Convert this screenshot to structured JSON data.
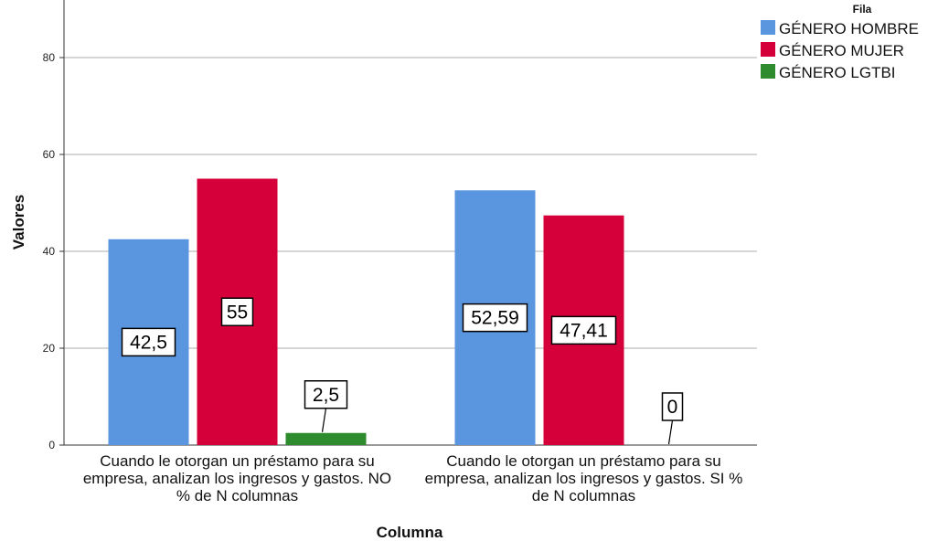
{
  "chart_data": {
    "type": "bar",
    "ylabel": "Valores",
    "xlabel": "Columna",
    "ylim": [
      0,
      90
    ],
    "yticks": [
      0,
      20,
      40,
      60,
      80
    ],
    "grid": true,
    "legend": {
      "title": "Fila",
      "placement": "top-right"
    },
    "categories": [
      [
        "Cuando le otorgan un préstamo para su",
        "empresa, analizan los ingresos y gastos. NO",
        "% de N columnas"
      ],
      [
        "Cuando le otorgan un préstamo para su",
        "empresa, analizan los ingresos y gastos. SI %",
        "de N columnas"
      ]
    ],
    "series": [
      {
        "name": "GÉNERO HOMBRE",
        "color": "#5A96E0",
        "values": [
          42.5,
          52.59
        ],
        "labels": [
          "42,5",
          "52,59"
        ]
      },
      {
        "name": "GÉNERO MUJER",
        "color": "#D5003A",
        "values": [
          55,
          47.41
        ],
        "labels": [
          "55",
          "47,41"
        ]
      },
      {
        "name": "GÉNERO LGTBI",
        "color": "#2E8B2E",
        "values": [
          2.5,
          0
        ],
        "labels": [
          "2,5",
          "0"
        ]
      }
    ]
  }
}
